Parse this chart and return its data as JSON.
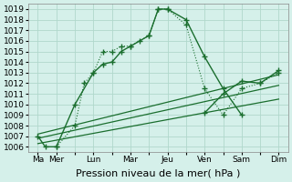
{
  "title": "",
  "xlabel": "Pression niveau de la mer( hPa )",
  "background_color": "#d5f0ea",
  "grid_color": "#b0d8cc",
  "line_color": "#1a6e2e",
  "ylim": [
    1005.5,
    1019.5
  ],
  "yticks": [
    1006,
    1007,
    1008,
    1009,
    1010,
    1011,
    1012,
    1013,
    1014,
    1015,
    1016,
    1017,
    1018,
    1019
  ],
  "x_tick_positions": [
    0,
    1,
    2,
    3,
    4,
    5,
    6,
    7,
    8,
    9,
    10,
    11,
    12,
    13
  ],
  "x_tick_labels": [
    "Ma",
    "Mer",
    "",
    "Lun",
    "",
    "Mar",
    "",
    "Jeu",
    "",
    "Ven",
    "",
    "Sam",
    "",
    "Dim"
  ],
  "series_main": {
    "x": [
      0,
      0.4,
      1,
      2,
      3,
      3.5,
      4,
      4.5,
      5,
      6,
      6.5,
      7,
      8,
      9,
      10,
      11
    ],
    "y": [
      1007,
      1006,
      1006,
      1010,
      1013,
      1013.8,
      1014,
      1015,
      1015.5,
      1016.5,
      1019,
      1019,
      1018,
      1014.5,
      1011.5,
      1009
    ]
  },
  "series_secondary": {
    "x": [
      1,
      2,
      2.5,
      3,
      3.5,
      4,
      4.5,
      5,
      5.5,
      6,
      6.5,
      7,
      8,
      9,
      10,
      11,
      12,
      13
    ],
    "y": [
      1006,
      1008,
      1012,
      1013,
      1015,
      1015,
      1015.5,
      1015.5,
      1016,
      1016.5,
      1019,
      1019,
      1017.5,
      1011.5,
      1009,
      1011.5,
      1012,
      1013
    ]
  },
  "series_linear1": {
    "x": [
      0,
      13
    ],
    "y": [
      1006.3,
      1010.5
    ]
  },
  "series_linear2": {
    "x": [
      0,
      13
    ],
    "y": [
      1006.8,
      1011.8
    ]
  },
  "series_linear3": {
    "x": [
      0,
      13
    ],
    "y": [
      1007.2,
      1012.8
    ]
  },
  "series_recovery": {
    "x": [
      9,
      10,
      11,
      12,
      13
    ],
    "y": [
      1009.2,
      1011.0,
      1012.2,
      1012.0,
      1013.2
    ]
  },
  "fontsize_xlabel": 8,
  "fontsize_tick": 6.5
}
